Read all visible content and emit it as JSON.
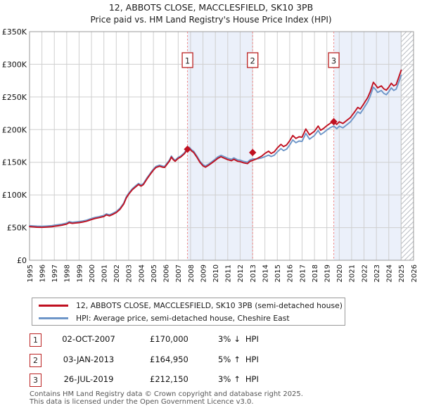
{
  "title": "12, ABBOTS CLOSE, MACCLESFIELD, SK10 3PB",
  "subtitle": "Price paid vs. HM Land Registry's House Price Index (HPI)",
  "chart_data": {
    "type": "line",
    "x_axis": {
      "range": [
        1995,
        2026
      ],
      "ticks": [
        1995,
        1996,
        1997,
        1998,
        1999,
        2000,
        2001,
        2002,
        2003,
        2004,
        2005,
        2006,
        2007,
        2008,
        2009,
        2010,
        2011,
        2012,
        2013,
        2014,
        2015,
        2016,
        2017,
        2018,
        2019,
        2020,
        2021,
        2022,
        2023,
        2024,
        2025,
        2026
      ],
      "tick_label_rotation_deg": -90
    },
    "y_axis": {
      "range_thousands_gbp": [
        0,
        350
      ],
      "ticks": [
        {
          "value": 0,
          "label": "£0"
        },
        {
          "value": 50,
          "label": "£50K"
        },
        {
          "value": 100,
          "label": "£100K"
        },
        {
          "value": 150,
          "label": "£150K"
        },
        {
          "value": 200,
          "label": "£200K"
        },
        {
          "value": 250,
          "label": "£250K"
        },
        {
          "value": 300,
          "label": "£300K"
        },
        {
          "value": 350,
          "label": "£350K"
        }
      ]
    },
    "grid": true,
    "series": [
      {
        "name": "12, ABBOTS CLOSE, MACCLESFIELD, SK10 3PB (semi-detached house)",
        "color": "#c01020",
        "points": [
          [
            1995.0,
            51.5
          ],
          [
            1995.3,
            51.0
          ],
          [
            1995.6,
            50.6
          ],
          [
            1996.0,
            50.4
          ],
          [
            1996.4,
            50.8
          ],
          [
            1996.8,
            51.4
          ],
          [
            1997.0,
            52.0
          ],
          [
            1997.3,
            52.8
          ],
          [
            1997.6,
            53.6
          ],
          [
            1998.0,
            55.3
          ],
          [
            1998.2,
            57.5
          ],
          [
            1998.45,
            56.4
          ],
          [
            1998.7,
            57.0
          ],
          [
            1999.0,
            57.6
          ],
          [
            1999.3,
            58.5
          ],
          [
            1999.6,
            59.8
          ],
          [
            2000.0,
            62.4
          ],
          [
            2000.3,
            64.0
          ],
          [
            2000.6,
            65.2
          ],
          [
            2001.0,
            67.0
          ],
          [
            2001.2,
            69.5
          ],
          [
            2001.45,
            68.0
          ],
          [
            2001.7,
            70.0
          ],
          [
            2002.0,
            73.0
          ],
          [
            2002.3,
            78.0
          ],
          [
            2002.6,
            86.0
          ],
          [
            2002.8,
            95.0
          ],
          [
            2003.0,
            101.0
          ],
          [
            2003.3,
            108.0
          ],
          [
            2003.6,
            113.0
          ],
          [
            2003.8,
            116.0
          ],
          [
            2004.0,
            113.5
          ],
          [
            2004.2,
            116.0
          ],
          [
            2004.5,
            125.0
          ],
          [
            2004.8,
            133.0
          ],
          [
            2005.0,
            138.0
          ],
          [
            2005.2,
            142.0
          ],
          [
            2005.5,
            144.0
          ],
          [
            2005.75,
            142.5
          ],
          [
            2005.9,
            142.0
          ],
          [
            2006.1,
            147.0
          ],
          [
            2006.3,
            152.0
          ],
          [
            2006.45,
            158.0
          ],
          [
            2006.6,
            154.0
          ],
          [
            2006.75,
            151.5
          ],
          [
            2007.0,
            156.0
          ],
          [
            2007.2,
            158.0
          ],
          [
            2007.5,
            163.0
          ],
          [
            2007.75,
            170.0
          ],
          [
            2007.9,
            171.0
          ],
          [
            2008.1,
            167.0
          ],
          [
            2008.25,
            165.0
          ],
          [
            2008.5,
            158.0
          ],
          [
            2008.75,
            150.0
          ],
          [
            2009.0,
            144.5
          ],
          [
            2009.2,
            142.5
          ],
          [
            2009.5,
            146.0
          ],
          [
            2009.75,
            149.5
          ],
          [
            2010.0,
            153.0
          ],
          [
            2010.2,
            156.0
          ],
          [
            2010.45,
            158.5
          ],
          [
            2010.7,
            156.5
          ],
          [
            2011.0,
            154.0
          ],
          [
            2011.3,
            152.5
          ],
          [
            2011.5,
            154.5
          ],
          [
            2011.8,
            151.5
          ],
          [
            2012.0,
            151.0
          ],
          [
            2012.3,
            149.0
          ],
          [
            2012.6,
            148.0
          ],
          [
            2012.8,
            151.5
          ],
          [
            2013.04,
            153.0
          ],
          [
            2013.3,
            155.0
          ],
          [
            2013.5,
            157.0
          ],
          [
            2013.75,
            159.5
          ],
          [
            2014.0,
            163.5
          ],
          [
            2014.3,
            167.0
          ],
          [
            2014.5,
            163.5
          ],
          [
            2014.75,
            166.0
          ],
          [
            2015.0,
            172.0
          ],
          [
            2015.3,
            177.5
          ],
          [
            2015.5,
            174.0
          ],
          [
            2015.75,
            176.5
          ],
          [
            2016.0,
            183.0
          ],
          [
            2016.25,
            191.0
          ],
          [
            2016.5,
            186.5
          ],
          [
            2016.75,
            189.0
          ],
          [
            2017.0,
            188.5
          ],
          [
            2017.3,
            201.0
          ],
          [
            2017.6,
            192.0
          ],
          [
            2018.0,
            197.5
          ],
          [
            2018.3,
            205.5
          ],
          [
            2018.5,
            199.0
          ],
          [
            2018.75,
            202.0
          ],
          [
            2019.0,
            206.0
          ],
          [
            2019.3,
            210.0
          ],
          [
            2019.56,
            212.2
          ],
          [
            2019.8,
            208.0
          ],
          [
            2020.0,
            212.0
          ],
          [
            2020.3,
            209.5
          ],
          [
            2020.6,
            214.0
          ],
          [
            2020.9,
            218.5
          ],
          [
            2021.2,
            226.0
          ],
          [
            2021.5,
            234.0
          ],
          [
            2021.7,
            231.5
          ],
          [
            2022.0,
            240.0
          ],
          [
            2022.3,
            249.0
          ],
          [
            2022.5,
            258.0
          ],
          [
            2022.75,
            272.5
          ],
          [
            2022.95,
            268.0
          ],
          [
            2023.1,
            264.0
          ],
          [
            2023.4,
            267.0
          ],
          [
            2023.6,
            262.5
          ],
          [
            2023.8,
            260.5
          ],
          [
            2024.0,
            265.0
          ],
          [
            2024.2,
            271.0
          ],
          [
            2024.4,
            267.0
          ],
          [
            2024.6,
            269.0
          ],
          [
            2024.8,
            280.0
          ],
          [
            2025.0,
            291.0
          ]
        ]
      },
      {
        "name": "HPI: Average price, semi-detached house, Cheshire East",
        "color": "#6e96c8",
        "points": [
          [
            1995.0,
            53.0
          ],
          [
            1995.3,
            52.6
          ],
          [
            1995.6,
            52.2
          ],
          [
            1996.0,
            52.0
          ],
          [
            1996.4,
            52.4
          ],
          [
            1996.8,
            53.0
          ],
          [
            1997.0,
            53.6
          ],
          [
            1997.3,
            54.4
          ],
          [
            1997.6,
            55.2
          ],
          [
            1998.0,
            56.9
          ],
          [
            1998.2,
            59.1
          ],
          [
            1998.45,
            58.0
          ],
          [
            1998.7,
            58.6
          ],
          [
            1999.0,
            59.2
          ],
          [
            1999.3,
            60.1
          ],
          [
            1999.6,
            61.4
          ],
          [
            2000.0,
            64.0
          ],
          [
            2000.3,
            65.6
          ],
          [
            2000.6,
            66.8
          ],
          [
            2001.0,
            68.6
          ],
          [
            2001.2,
            71.1
          ],
          [
            2001.45,
            69.6
          ],
          [
            2001.7,
            71.6
          ],
          [
            2002.0,
            74.6
          ],
          [
            2002.3,
            79.6
          ],
          [
            2002.6,
            87.6
          ],
          [
            2002.8,
            96.6
          ],
          [
            2003.0,
            102.6
          ],
          [
            2003.3,
            109.6
          ],
          [
            2003.6,
            114.6
          ],
          [
            2003.8,
            117.6
          ],
          [
            2004.0,
            115.1
          ],
          [
            2004.2,
            117.6
          ],
          [
            2004.5,
            126.6
          ],
          [
            2004.8,
            134.6
          ],
          [
            2005.0,
            139.6
          ],
          [
            2005.2,
            143.6
          ],
          [
            2005.5,
            145.6
          ],
          [
            2005.75,
            144.1
          ],
          [
            2005.9,
            143.6
          ],
          [
            2006.1,
            148.6
          ],
          [
            2006.3,
            153.6
          ],
          [
            2006.45,
            159.6
          ],
          [
            2006.6,
            155.6
          ],
          [
            2006.75,
            153.1
          ],
          [
            2007.0,
            157.6
          ],
          [
            2007.2,
            159.6
          ],
          [
            2007.5,
            164.6
          ],
          [
            2007.75,
            171.8
          ],
          [
            2007.9,
            172.8
          ],
          [
            2008.1,
            168.8
          ],
          [
            2008.25,
            166.8
          ],
          [
            2008.5,
            159.8
          ],
          [
            2008.75,
            151.8
          ],
          [
            2009.0,
            146.3
          ],
          [
            2009.2,
            144.3
          ],
          [
            2009.5,
            147.8
          ],
          [
            2009.75,
            151.3
          ],
          [
            2010.0,
            155.0
          ],
          [
            2010.2,
            158.2
          ],
          [
            2010.45,
            160.7
          ],
          [
            2010.7,
            158.7
          ],
          [
            2011.0,
            156.2
          ],
          [
            2011.3,
            154.7
          ],
          [
            2011.5,
            156.7
          ],
          [
            2011.8,
            153.7
          ],
          [
            2012.0,
            153.2
          ],
          [
            2012.3,
            151.2
          ],
          [
            2012.6,
            150.2
          ],
          [
            2012.8,
            153.7
          ],
          [
            2013.04,
            155.0
          ],
          [
            2013.3,
            155.3
          ],
          [
            2013.5,
            155.6
          ],
          [
            2013.75,
            156.8
          ],
          [
            2014.0,
            158.5
          ],
          [
            2014.3,
            161.0
          ],
          [
            2014.5,
            158.8
          ],
          [
            2014.75,
            160.8
          ],
          [
            2015.0,
            166.0
          ],
          [
            2015.3,
            171.0
          ],
          [
            2015.5,
            167.8
          ],
          [
            2015.75,
            170.2
          ],
          [
            2016.0,
            176.5
          ],
          [
            2016.25,
            184.3
          ],
          [
            2016.5,
            180.0
          ],
          [
            2016.75,
            182.5
          ],
          [
            2017.0,
            182.0
          ],
          [
            2017.3,
            194.3
          ],
          [
            2017.6,
            185.5
          ],
          [
            2018.0,
            191.0
          ],
          [
            2018.3,
            198.8
          ],
          [
            2018.5,
            192.5
          ],
          [
            2018.75,
            195.5
          ],
          [
            2019.0,
            199.5
          ],
          [
            2019.3,
            203.3
          ],
          [
            2019.56,
            205.5
          ],
          [
            2019.8,
            201.5
          ],
          [
            2020.0,
            205.3
          ],
          [
            2020.3,
            202.8
          ],
          [
            2020.6,
            207.3
          ],
          [
            2020.9,
            211.8
          ],
          [
            2021.2,
            219.3
          ],
          [
            2021.5,
            227.3
          ],
          [
            2021.7,
            224.8
          ],
          [
            2022.0,
            233.3
          ],
          [
            2022.3,
            242.3
          ],
          [
            2022.5,
            251.3
          ],
          [
            2022.75,
            265.0
          ],
          [
            2022.95,
            261.0
          ],
          [
            2023.1,
            257.0
          ],
          [
            2023.4,
            260.0
          ],
          [
            2023.6,
            255.5
          ],
          [
            2023.8,
            253.5
          ],
          [
            2024.0,
            258.0
          ],
          [
            2024.2,
            264.0
          ],
          [
            2024.4,
            260.0
          ],
          [
            2024.6,
            262.0
          ],
          [
            2024.8,
            272.5
          ],
          [
            2025.0,
            283.0
          ]
        ]
      }
    ],
    "sale_markers": [
      {
        "label": "1",
        "year": 2007.75,
        "value_thousands": 170.0
      },
      {
        "label": "2",
        "year": 2013.01,
        "value_thousands": 164.95
      },
      {
        "label": "3",
        "year": 2019.56,
        "value_thousands": 212.15
      }
    ],
    "shaded_bands_years": [
      [
        2007.75,
        2013.01
      ],
      [
        2019.56,
        2025.0
      ]
    ],
    "hatched_band_years": [
      2025.0,
      2026.0
    ],
    "colors": {
      "price_line": "#c01020",
      "hpi_line": "#6e96c8",
      "sale_dashed_line": "#ef8585",
      "marker_box_border": "#bb2222",
      "shaded_band": "#ebf0fa",
      "grid_line": "#cfcfcf",
      "plot_border": "#9a9a9a",
      "hatch_line": "#b9bdc4"
    },
    "legend_position": "bottom"
  },
  "legend": [
    {
      "label": "12, ABBOTS CLOSE, MACCLESFIELD, SK10 3PB (semi-detached house)"
    },
    {
      "label": "HPI: Average price, semi-detached house, Cheshire East"
    }
  ],
  "sales_table": {
    "rows": [
      {
        "num": "1",
        "date": "02-OCT-2007",
        "price": "£170,000",
        "pct": "3%",
        "arrow": "↓",
        "ref": "HPI"
      },
      {
        "num": "2",
        "date": "03-JAN-2013",
        "price": "£164,950",
        "pct": "5%",
        "arrow": "↑",
        "ref": "HPI"
      },
      {
        "num": "3",
        "date": "26-JUL-2019",
        "price": "£212,150",
        "pct": "3%",
        "arrow": "↑",
        "ref": "HPI"
      }
    ]
  },
  "footer": {
    "line1": "Contains HM Land Registry data © Crown copyright and database right 2025.",
    "line2": "This data is licensed under the Open Government Licence v3.0."
  }
}
